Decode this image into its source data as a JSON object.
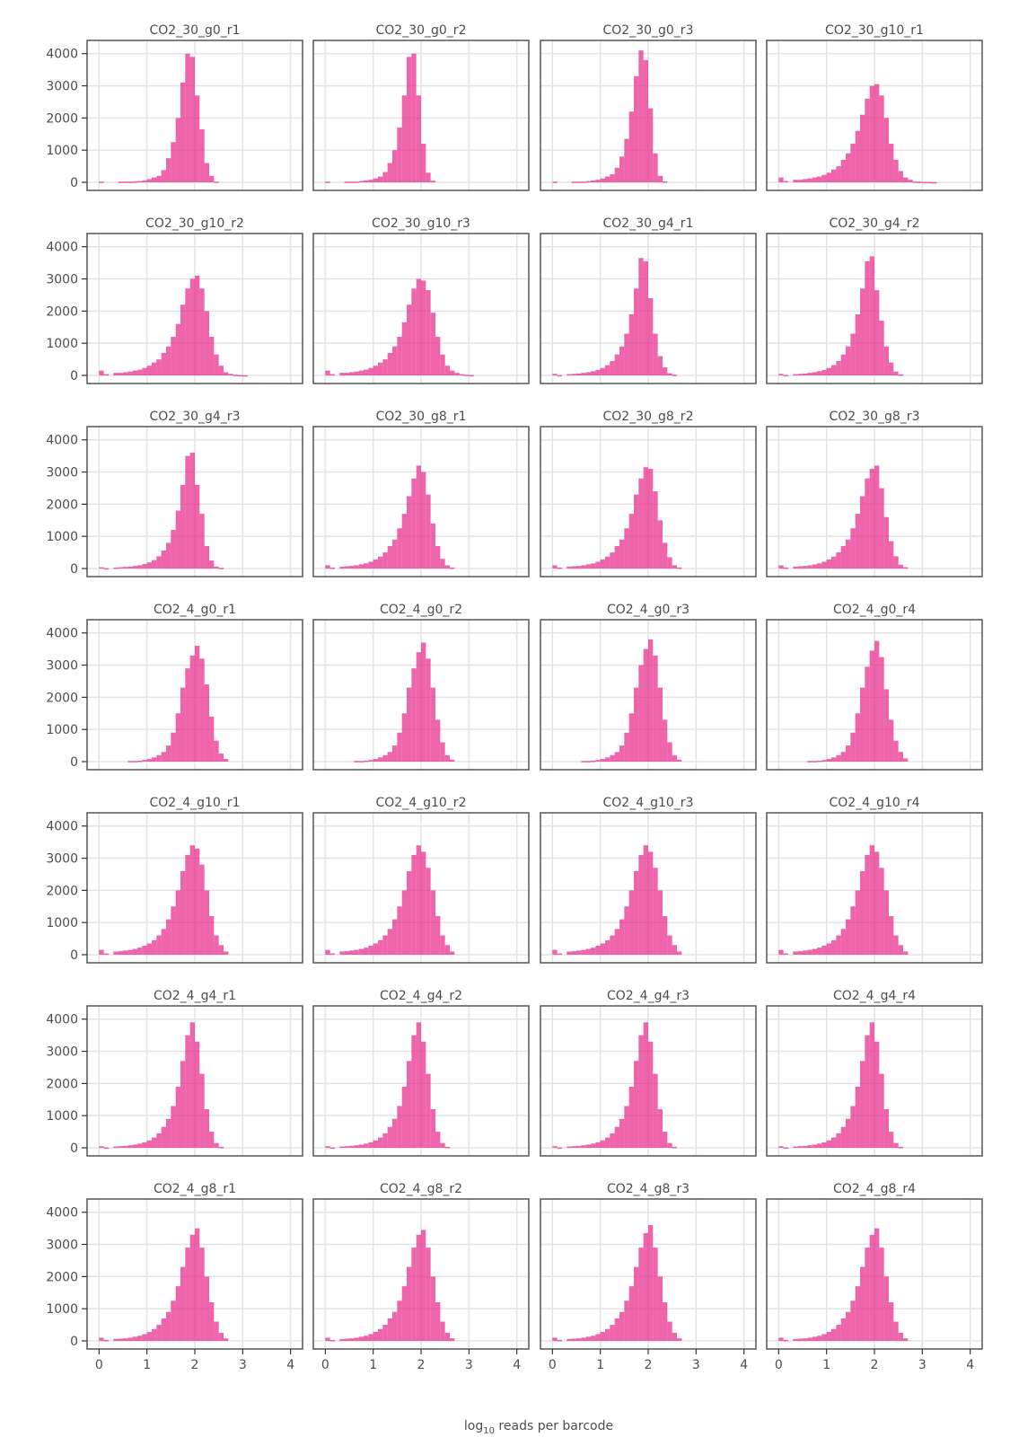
{
  "chart_data": {
    "type": "bar",
    "subtype": "histogram-facet-grid",
    "xlabel_base": "log",
    "xlabel_sub": "10",
    "xlabel_rest": " reads per barcode",
    "xlim": [
      -0.25,
      4.25
    ],
    "ylim": [
      0,
      4300
    ],
    "x_ticks": [
      "0",
      "1",
      "2",
      "3",
      "4"
    ],
    "y_ticks": [
      "0",
      "1000",
      "2000",
      "3000",
      "4000"
    ],
    "bar_color": "#e7298a",
    "bin_start": 0.0,
    "bin_width": 0.1,
    "grid": true,
    "columns": 4,
    "panels": [
      {
        "label": "CO2_30_g0_r1",
        "counts": [
          20,
          0,
          0,
          0,
          20,
          20,
          20,
          30,
          40,
          60,
          100,
          150,
          200,
          380,
          750,
          1250,
          2000,
          3100,
          4000,
          3900,
          2700,
          1650,
          600,
          200,
          20
        ]
      },
      {
        "label": "CO2_30_g0_r2",
        "counts": [
          20,
          0,
          0,
          0,
          20,
          20,
          20,
          40,
          60,
          80,
          120,
          180,
          320,
          600,
          1000,
          1700,
          2700,
          3900,
          4000,
          2700,
          1200,
          300,
          50,
          0,
          0
        ]
      },
      {
        "label": "CO2_30_g0_r3",
        "counts": [
          20,
          0,
          0,
          0,
          20,
          20,
          20,
          40,
          60,
          80,
          120,
          180,
          250,
          450,
          800,
          1350,
          2200,
          3300,
          4100,
          3800,
          2300,
          900,
          200,
          30,
          0
        ]
      },
      {
        "label": "CO2_30_g10_r1",
        "counts": [
          150,
          40,
          0,
          80,
          80,
          100,
          120,
          150,
          180,
          230,
          300,
          400,
          500,
          700,
          900,
          1200,
          1600,
          2100,
          2600,
          3000,
          3050,
          2700,
          2000,
          1200,
          700,
          350,
          150,
          80,
          30,
          20,
          10,
          10,
          5
        ]
      },
      {
        "label": "CO2_30_g10_r2",
        "counts": [
          150,
          40,
          0,
          80,
          80,
          100,
          120,
          150,
          180,
          230,
          300,
          400,
          500,
          700,
          900,
          1200,
          1600,
          2200,
          2700,
          3000,
          3100,
          2700,
          2000,
          1200,
          650,
          300,
          100,
          50,
          20,
          10,
          5
        ]
      },
      {
        "label": "CO2_30_g10_r3",
        "counts": [
          150,
          40,
          0,
          80,
          80,
          100,
          120,
          150,
          180,
          230,
          300,
          400,
          500,
          700,
          900,
          1200,
          1650,
          2200,
          2700,
          3000,
          2950,
          2650,
          1950,
          1200,
          650,
          300,
          150,
          80,
          40,
          20,
          10
        ]
      },
      {
        "label": "CO2_30_g4_r1",
        "counts": [
          50,
          10,
          0,
          40,
          50,
          60,
          80,
          100,
          130,
          170,
          230,
          320,
          450,
          650,
          900,
          1300,
          1900,
          2700,
          3650,
          3550,
          2400,
          1300,
          600,
          250,
          70,
          20
        ]
      },
      {
        "label": "CO2_30_g4_r2",
        "counts": [
          50,
          10,
          0,
          40,
          50,
          60,
          80,
          100,
          130,
          170,
          230,
          320,
          450,
          650,
          900,
          1300,
          1900,
          2700,
          3550,
          3700,
          2650,
          1700,
          900,
          400,
          120,
          30
        ]
      },
      {
        "label": "CO2_30_g4_r3",
        "counts": [
          40,
          10,
          0,
          30,
          40,
          50,
          60,
          80,
          100,
          140,
          190,
          260,
          380,
          560,
          800,
          1200,
          1800,
          2600,
          3500,
          3600,
          2600,
          1700,
          700,
          250,
          60,
          20
        ]
      },
      {
        "label": "CO2_30_g8_r1",
        "counts": [
          100,
          30,
          0,
          60,
          70,
          80,
          100,
          130,
          160,
          210,
          280,
          370,
          500,
          700,
          900,
          1250,
          1700,
          2250,
          2800,
          3200,
          3000,
          2300,
          1400,
          700,
          300,
          100,
          30
        ]
      },
      {
        "label": "CO2_30_g8_r2",
        "counts": [
          100,
          30,
          0,
          60,
          70,
          80,
          100,
          130,
          160,
          210,
          280,
          370,
          500,
          700,
          900,
          1250,
          1700,
          2300,
          2800,
          3150,
          3100,
          2400,
          1500,
          800,
          350,
          100,
          30
        ]
      },
      {
        "label": "CO2_30_g8_r3",
        "counts": [
          100,
          30,
          0,
          60,
          70,
          80,
          100,
          130,
          160,
          210,
          280,
          370,
          500,
          700,
          900,
          1250,
          1700,
          2250,
          2800,
          3100,
          3200,
          2500,
          1600,
          850,
          380,
          120,
          40
        ]
      },
      {
        "label": "CO2_4_g0_r1",
        "counts": [
          0,
          0,
          0,
          0,
          0,
          0,
          20,
          20,
          30,
          50,
          80,
          130,
          200,
          300,
          500,
          900,
          1500,
          2300,
          2900,
          3300,
          3600,
          3200,
          2400,
          1400,
          650,
          250,
          80
        ]
      },
      {
        "label": "CO2_4_g0_r2",
        "counts": [
          0,
          0,
          0,
          0,
          0,
          0,
          20,
          20,
          30,
          50,
          80,
          130,
          200,
          300,
          500,
          900,
          1500,
          2300,
          2900,
          3400,
          3700,
          3200,
          2300,
          1300,
          600,
          200,
          60
        ]
      },
      {
        "label": "CO2_4_g0_r3",
        "counts": [
          0,
          0,
          0,
          0,
          0,
          0,
          20,
          20,
          30,
          50,
          80,
          130,
          200,
          300,
          500,
          900,
          1500,
          2300,
          3000,
          3500,
          3800,
          3300,
          2300,
          1300,
          600,
          200,
          60
        ]
      },
      {
        "label": "CO2_4_g0_r4",
        "counts": [
          0,
          0,
          0,
          0,
          0,
          0,
          20,
          20,
          30,
          50,
          80,
          130,
          200,
          300,
          500,
          900,
          1500,
          2300,
          2950,
          3450,
          3750,
          3250,
          2250,
          1300,
          650,
          300,
          100
        ]
      },
      {
        "label": "CO2_4_g10_r1",
        "counts": [
          150,
          40,
          0,
          100,
          110,
          130,
          150,
          180,
          220,
          280,
          350,
          450,
          600,
          800,
          1100,
          1500,
          2000,
          2600,
          3100,
          3400,
          3300,
          2800,
          2000,
          1200,
          600,
          300,
          100
        ]
      },
      {
        "label": "CO2_4_g10_r2",
        "counts": [
          150,
          40,
          0,
          100,
          110,
          130,
          150,
          180,
          220,
          280,
          350,
          450,
          600,
          800,
          1100,
          1500,
          2000,
          2600,
          3100,
          3400,
          3200,
          2700,
          2000,
          1200,
          600,
          300,
          100
        ]
      },
      {
        "label": "CO2_4_g10_r3",
        "counts": [
          150,
          40,
          0,
          100,
          110,
          130,
          150,
          180,
          220,
          280,
          350,
          450,
          600,
          800,
          1100,
          1500,
          2000,
          2600,
          3100,
          3400,
          3200,
          2700,
          2000,
          1200,
          600,
          300,
          100
        ]
      },
      {
        "label": "CO2_4_g10_r4",
        "counts": [
          150,
          40,
          0,
          100,
          110,
          130,
          150,
          180,
          220,
          280,
          350,
          450,
          600,
          800,
          1100,
          1500,
          2000,
          2600,
          3100,
          3400,
          3200,
          2700,
          2000,
          1200,
          600,
          300,
          100
        ]
      },
      {
        "label": "CO2_4_g4_r1",
        "counts": [
          50,
          10,
          0,
          40,
          50,
          60,
          80,
          100,
          130,
          170,
          230,
          320,
          450,
          650,
          900,
          1300,
          1900,
          2700,
          3500,
          3900,
          3300,
          2300,
          1200,
          500,
          150,
          30
        ]
      },
      {
        "label": "CO2_4_g4_r2",
        "counts": [
          50,
          10,
          0,
          40,
          50,
          60,
          80,
          100,
          130,
          170,
          230,
          320,
          450,
          650,
          900,
          1300,
          1900,
          2700,
          3500,
          3900,
          3300,
          2300,
          1200,
          500,
          150,
          30
        ]
      },
      {
        "label": "CO2_4_g4_r3",
        "counts": [
          50,
          10,
          0,
          40,
          50,
          60,
          80,
          100,
          130,
          170,
          230,
          320,
          450,
          650,
          900,
          1300,
          1900,
          2700,
          3500,
          3900,
          3300,
          2300,
          1200,
          500,
          150,
          30
        ]
      },
      {
        "label": "CO2_4_g4_r4",
        "counts": [
          50,
          10,
          0,
          40,
          50,
          60,
          80,
          100,
          130,
          170,
          230,
          320,
          450,
          650,
          900,
          1300,
          1900,
          2700,
          3500,
          3900,
          3300,
          2300,
          1200,
          500,
          150,
          30
        ]
      },
      {
        "label": "CO2_4_g8_r1",
        "counts": [
          100,
          30,
          0,
          60,
          70,
          80,
          100,
          130,
          160,
          210,
          280,
          370,
          500,
          700,
          900,
          1250,
          1700,
          2300,
          2900,
          3300,
          3500,
          2900,
          2000,
          1200,
          600,
          250,
          80
        ]
      },
      {
        "label": "CO2_4_g8_r2",
        "counts": [
          100,
          30,
          0,
          60,
          70,
          80,
          100,
          130,
          160,
          210,
          280,
          370,
          500,
          700,
          900,
          1250,
          1700,
          2300,
          2900,
          3300,
          3450,
          2900,
          2000,
          1200,
          600,
          250,
          80
        ]
      },
      {
        "label": "CO2_4_g8_r3",
        "counts": [
          100,
          30,
          0,
          60,
          70,
          80,
          100,
          130,
          160,
          210,
          280,
          370,
          500,
          700,
          900,
          1250,
          1700,
          2300,
          2900,
          3350,
          3600,
          2900,
          2000,
          1200,
          600,
          250,
          80
        ]
      },
      {
        "label": "CO2_4_g8_r4",
        "counts": [
          100,
          30,
          0,
          60,
          70,
          80,
          100,
          130,
          160,
          210,
          280,
          370,
          500,
          700,
          900,
          1250,
          1700,
          2300,
          2900,
          3300,
          3500,
          2900,
          2000,
          1200,
          600,
          250,
          80
        ]
      }
    ]
  }
}
